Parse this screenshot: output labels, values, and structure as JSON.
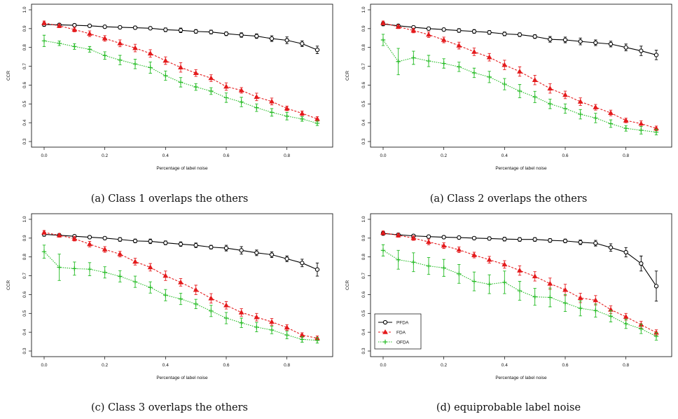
{
  "chart_data": [
    {
      "type": "line",
      "caption": "(a) Class 1 overlaps the others",
      "xlabel": "Percentage of label noise",
      "ylabel": "CCR",
      "xlim": [
        0,
        0.9
      ],
      "ylim": [
        0.3,
        1.0
      ],
      "xticks": [
        "0.0",
        "0.2",
        "0.4",
        "0.6",
        "0.8"
      ],
      "yticks": [
        "0.3",
        "0.4",
        "0.5",
        "0.6",
        "0.7",
        "0.8",
        "0.9",
        "1.0"
      ],
      "x": [
        0,
        0.05,
        0.1,
        0.15,
        0.2,
        0.25,
        0.3,
        0.35,
        0.4,
        0.45,
        0.5,
        0.55,
        0.6,
        0.65,
        0.7,
        0.75,
        0.8,
        0.85,
        0.9
      ],
      "legend": false,
      "series": [
        {
          "name": "PFDA",
          "color": "#000000",
          "marker": "circle",
          "values": [
            0.922,
            0.92,
            0.918,
            0.915,
            0.91,
            0.907,
            0.905,
            0.902,
            0.894,
            0.891,
            0.885,
            0.882,
            0.873,
            0.866,
            0.86,
            0.847,
            0.838,
            0.82,
            0.787
          ],
          "err": [
            0.01,
            0.008,
            0.008,
            0.008,
            0.008,
            0.008,
            0.008,
            0.008,
            0.01,
            0.012,
            0.01,
            0.01,
            0.01,
            0.012,
            0.012,
            0.015,
            0.018,
            0.015,
            0.02
          ]
        },
        {
          "name": "FDA",
          "color": "#e41a1c",
          "marker": "triangle",
          "values": [
            0.93,
            0.915,
            0.895,
            0.873,
            0.848,
            0.822,
            0.797,
            0.768,
            0.73,
            0.694,
            0.664,
            0.637,
            0.592,
            0.572,
            0.537,
            0.513,
            0.476,
            0.45,
            0.42
          ],
          "err": [
            0.01,
            0.01,
            0.012,
            0.015,
            0.015,
            0.018,
            0.02,
            0.02,
            0.02,
            0.025,
            0.018,
            0.018,
            0.02,
            0.015,
            0.02,
            0.018,
            0.012,
            0.012,
            0.012
          ]
        },
        {
          "name": "OFDA",
          "color": "#22bb22",
          "marker": "plus",
          "values": [
            0.835,
            0.822,
            0.805,
            0.79,
            0.757,
            0.733,
            0.712,
            0.693,
            0.65,
            0.615,
            0.59,
            0.568,
            0.533,
            0.51,
            0.48,
            0.455,
            0.435,
            0.42,
            0.397
          ],
          "err": [
            0.03,
            0.012,
            0.015,
            0.015,
            0.02,
            0.025,
            0.025,
            0.03,
            0.025,
            0.025,
            0.018,
            0.018,
            0.025,
            0.025,
            0.02,
            0.02,
            0.02,
            0.012,
            0.012
          ]
        }
      ]
    },
    {
      "type": "line",
      "caption": "(a) Class 2 overlaps the others",
      "xlabel": "Percentage of label noise",
      "ylabel": "CCR",
      "xlim": [
        0,
        0.9
      ],
      "ylim": [
        0.3,
        1.0
      ],
      "xticks": [
        "0.0",
        "0.2",
        "0.4",
        "0.6",
        "0.8"
      ],
      "yticks": [
        "0.3",
        "0.4",
        "0.5",
        "0.6",
        "0.7",
        "0.8",
        "0.9",
        "1.0"
      ],
      "x": [
        0,
        0.05,
        0.1,
        0.15,
        0.2,
        0.25,
        0.3,
        0.35,
        0.4,
        0.45,
        0.5,
        0.55,
        0.6,
        0.65,
        0.7,
        0.75,
        0.8,
        0.85,
        0.9
      ],
      "legend": false,
      "series": [
        {
          "name": "PFDA",
          "color": "#000000",
          "marker": "circle",
          "values": [
            0.925,
            0.915,
            0.907,
            0.9,
            0.895,
            0.89,
            0.885,
            0.88,
            0.872,
            0.868,
            0.858,
            0.843,
            0.84,
            0.832,
            0.825,
            0.818,
            0.8,
            0.782,
            0.76
          ],
          "err": [
            0.01,
            0.008,
            0.008,
            0.008,
            0.008,
            0.01,
            0.01,
            0.01,
            0.01,
            0.01,
            0.01,
            0.015,
            0.015,
            0.018,
            0.015,
            0.015,
            0.018,
            0.025,
            0.025
          ]
        },
        {
          "name": "FDA",
          "color": "#e41a1c",
          "marker": "triangle",
          "values": [
            0.93,
            0.91,
            0.89,
            0.868,
            0.84,
            0.81,
            0.777,
            0.748,
            0.707,
            0.672,
            0.627,
            0.582,
            0.548,
            0.512,
            0.482,
            0.452,
            0.412,
            0.395,
            0.37
          ],
          "err": [
            0.01,
            0.01,
            0.012,
            0.015,
            0.015,
            0.018,
            0.02,
            0.02,
            0.025,
            0.025,
            0.025,
            0.025,
            0.02,
            0.02,
            0.015,
            0.015,
            0.012,
            0.015,
            0.012
          ]
        },
        {
          "name": "OFDA",
          "color": "#22bb22",
          "marker": "plus",
          "values": [
            0.84,
            0.725,
            0.745,
            0.728,
            0.715,
            0.697,
            0.665,
            0.643,
            0.605,
            0.568,
            0.537,
            0.5,
            0.475,
            0.445,
            0.425,
            0.395,
            0.37,
            0.36,
            0.35
          ],
          "err": [
            0.03,
            0.07,
            0.035,
            0.03,
            0.025,
            0.025,
            0.025,
            0.03,
            0.03,
            0.035,
            0.03,
            0.025,
            0.025,
            0.025,
            0.025,
            0.02,
            0.015,
            0.02,
            0.015
          ]
        }
      ]
    },
    {
      "type": "line",
      "caption": "(c) Class 3 overlaps the others",
      "xlabel": "Percentage of label noise",
      "ylabel": "CCR",
      "xlim": [
        0,
        0.9
      ],
      "ylim": [
        0.3,
        1.0
      ],
      "xticks": [
        "0.0",
        "0.2",
        "0.4",
        "0.6",
        "0.8"
      ],
      "yticks": [
        "0.3",
        "0.4",
        "0.5",
        "0.6",
        "0.7",
        "0.8",
        "0.9",
        "1.0"
      ],
      "x": [
        0,
        0.05,
        0.1,
        0.15,
        0.2,
        0.25,
        0.3,
        0.35,
        0.4,
        0.45,
        0.5,
        0.55,
        0.6,
        0.65,
        0.7,
        0.75,
        0.8,
        0.85,
        0.9
      ],
      "legend": false,
      "series": [
        {
          "name": "PFDA",
          "color": "#000000",
          "marker": "circle",
          "values": [
            0.92,
            0.915,
            0.91,
            0.905,
            0.9,
            0.893,
            0.885,
            0.883,
            0.875,
            0.868,
            0.862,
            0.852,
            0.847,
            0.835,
            0.822,
            0.812,
            0.79,
            0.768,
            0.733
          ],
          "err": [
            0.01,
            0.008,
            0.008,
            0.008,
            0.008,
            0.01,
            0.01,
            0.012,
            0.01,
            0.012,
            0.012,
            0.01,
            0.015,
            0.02,
            0.015,
            0.015,
            0.015,
            0.02,
            0.035
          ]
        },
        {
          "name": "FDA",
          "color": "#e41a1c",
          "marker": "triangle",
          "values": [
            0.93,
            0.915,
            0.897,
            0.868,
            0.84,
            0.815,
            0.775,
            0.745,
            0.7,
            0.665,
            0.625,
            0.58,
            0.543,
            0.505,
            0.48,
            0.455,
            0.425,
            0.385,
            0.368
          ],
          "err": [
            0.01,
            0.01,
            0.012,
            0.015,
            0.015,
            0.015,
            0.018,
            0.02,
            0.025,
            0.02,
            0.025,
            0.025,
            0.02,
            0.02,
            0.02,
            0.018,
            0.015,
            0.012,
            0.012
          ]
        },
        {
          "name": "OFDA",
          "color": "#22bb22",
          "marker": "plus",
          "values": [
            0.828,
            0.745,
            0.738,
            0.735,
            0.718,
            0.697,
            0.668,
            0.638,
            0.597,
            0.577,
            0.55,
            0.513,
            0.475,
            0.45,
            0.427,
            0.412,
            0.385,
            0.362,
            0.357
          ],
          "err": [
            0.035,
            0.07,
            0.035,
            0.035,
            0.03,
            0.03,
            0.03,
            0.03,
            0.03,
            0.03,
            0.025,
            0.03,
            0.03,
            0.025,
            0.025,
            0.02,
            0.02,
            0.015,
            0.015
          ]
        }
      ]
    },
    {
      "type": "line",
      "caption": "(d) equiprobable label noise",
      "xlabel": "Percentage of label noise",
      "ylabel": "CCR",
      "xlim": [
        0,
        0.9
      ],
      "ylim": [
        0.3,
        1.0
      ],
      "xticks": [
        "0.0",
        "0.2",
        "0.4",
        "0.6",
        "0.8"
      ],
      "yticks": [
        "0.3",
        "0.4",
        "0.5",
        "0.6",
        "0.7",
        "0.8",
        "0.9",
        "1.0"
      ],
      "x": [
        0,
        0.05,
        0.1,
        0.15,
        0.2,
        0.25,
        0.3,
        0.35,
        0.4,
        0.45,
        0.5,
        0.55,
        0.6,
        0.65,
        0.7,
        0.75,
        0.8,
        0.85,
        0.9
      ],
      "legend": true,
      "legend_position": "bottom-left",
      "series": [
        {
          "name": "PFDA",
          "color": "#000000",
          "marker": "circle",
          "values": [
            0.925,
            0.918,
            0.912,
            0.908,
            0.905,
            0.903,
            0.9,
            0.898,
            0.895,
            0.893,
            0.893,
            0.888,
            0.885,
            0.878,
            0.873,
            0.85,
            0.825,
            0.765,
            0.645
          ],
          "err": [
            0.01,
            0.008,
            0.008,
            0.008,
            0.008,
            0.008,
            0.008,
            0.008,
            0.01,
            0.01,
            0.01,
            0.01,
            0.01,
            0.012,
            0.015,
            0.02,
            0.025,
            0.04,
            0.08
          ]
        },
        {
          "name": "FDA",
          "color": "#e41a1c",
          "marker": "triangle",
          "values": [
            0.928,
            0.915,
            0.9,
            0.88,
            0.86,
            0.838,
            0.81,
            0.785,
            0.76,
            0.728,
            0.697,
            0.658,
            0.625,
            0.582,
            0.57,
            0.52,
            0.482,
            0.44,
            0.398
          ],
          "err": [
            0.01,
            0.01,
            0.012,
            0.015,
            0.015,
            0.015,
            0.015,
            0.018,
            0.02,
            0.025,
            0.025,
            0.03,
            0.03,
            0.025,
            0.025,
            0.02,
            0.018,
            0.018,
            0.015
          ]
        },
        {
          "name": "OFDA",
          "color": "#22bb22",
          "marker": "plus",
          "values": [
            0.835,
            0.785,
            0.772,
            0.752,
            0.742,
            0.71,
            0.67,
            0.655,
            0.665,
            0.62,
            0.588,
            0.585,
            0.555,
            0.527,
            0.515,
            0.485,
            0.445,
            0.418,
            0.378
          ],
          "err": [
            0.03,
            0.05,
            0.05,
            0.045,
            0.045,
            0.05,
            0.05,
            0.05,
            0.06,
            0.05,
            0.045,
            0.05,
            0.045,
            0.04,
            0.035,
            0.03,
            0.025,
            0.025,
            0.02
          ]
        }
      ]
    }
  ]
}
